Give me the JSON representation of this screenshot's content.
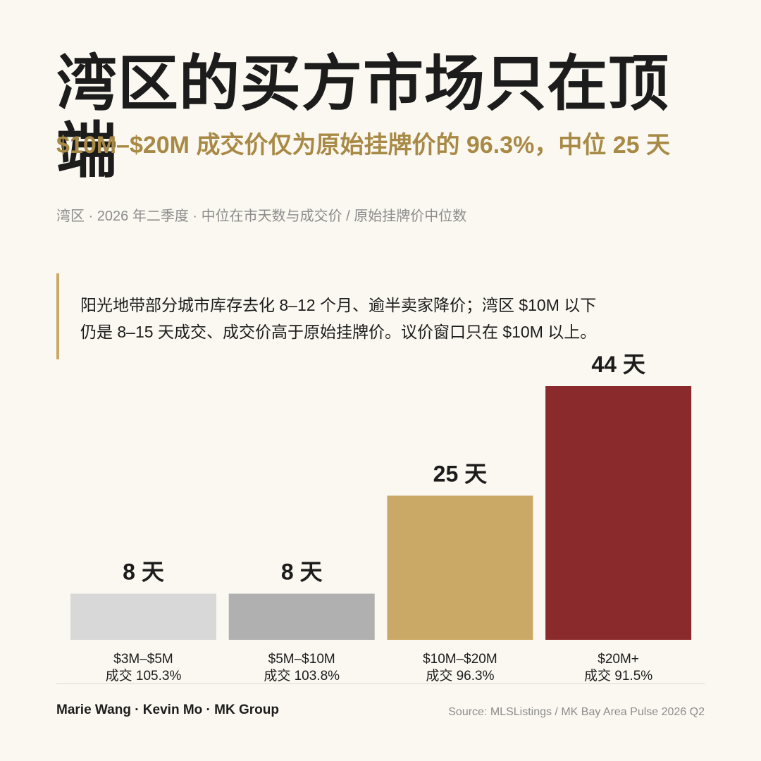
{
  "title": "湾区的买方市场只在顶端",
  "subtitle": "$10M–$20M 成交价仅为原始挂牌价的 96.3%，中位 25 天",
  "meta": "湾区 · 2026 年二季度 · 中位在市天数与成交价 / 原始挂牌价中位数",
  "callout": {
    "line1": "阳光地带部分城市库存去化 8–12 个月、逾半卖家降价；湾区 $10M 以下",
    "line2": "仍是 8–15 天成交、成交价高于原始挂牌价。议价窗口只在 $10M 以上。"
  },
  "chart_data": {
    "type": "bar",
    "categories": [
      "$3M–$5M",
      "$5M–$10M",
      "$10M–$20M",
      "$20M+"
    ],
    "values": [
      8,
      8,
      25,
      44
    ],
    "value_labels": [
      "8 天",
      "8 天",
      "25 天",
      "44 天"
    ],
    "sublabels": [
      "成交 105.3%",
      "成交 103.8%",
      "成交 96.3%",
      "成交 91.5%"
    ],
    "sale_to_list_pct": [
      105.3,
      103.8,
      96.3,
      91.5
    ],
    "colors": [
      "#d8d8d8",
      "#b0b0b0",
      "#c9a965",
      "#8b2a2d"
    ],
    "ylim": [
      0,
      44
    ],
    "grid": false,
    "legend": "none"
  },
  "footer": {
    "credit": "Marie Wang · Kevin Mo · MK Group",
    "source": "Source: MLSListings / MK Bay Area Pulse 2026 Q2"
  }
}
